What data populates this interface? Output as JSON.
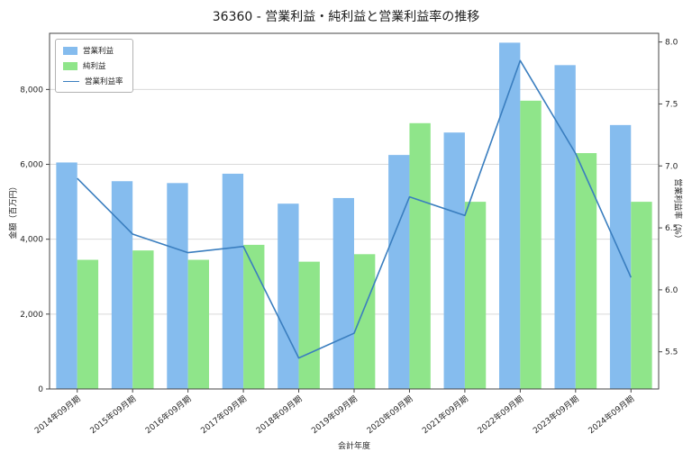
{
  "title": "36360 - 営業利益・純利益と営業利益率の推移",
  "chart_data": {
    "type": "bar",
    "categories": [
      "2014年09月期",
      "2015年09月期",
      "2016年09月期",
      "2017年09月期",
      "2018年09月期",
      "2019年09月期",
      "2020年09月期",
      "2021年09月期",
      "2022年09月期",
      "2023年09月期",
      "2024年09月期"
    ],
    "series": [
      {
        "name": "営業利益",
        "key": "operating-profit",
        "type": "bar",
        "axis": "left",
        "color": "#85bcee",
        "values": [
          6050,
          5550,
          5500,
          5750,
          4950,
          5100,
          6250,
          6850,
          9250,
          8650,
          7050
        ]
      },
      {
        "name": "純利益",
        "key": "net-profit",
        "type": "bar",
        "axis": "left",
        "color": "#8fe58a",
        "values": [
          3450,
          3700,
          3450,
          3850,
          3400,
          3600,
          7100,
          5000,
          7700,
          6300,
          5000
        ]
      },
      {
        "name": "営業利益率",
        "key": "operating-margin",
        "type": "line",
        "axis": "right",
        "color": "#3a7ebf",
        "values": [
          6.9,
          6.45,
          6.3,
          6.35,
          5.45,
          5.65,
          6.75,
          6.6,
          7.85,
          7.1,
          6.1
        ]
      }
    ],
    "xlabel": "会計年度",
    "ylabel_left": "金額（百万円）",
    "ylabel_right": "営業利益率（%）",
    "ylim_left": [
      0,
      9500
    ],
    "ylim_right": [
      5.2,
      8.07
    ],
    "yticks_left": [
      0,
      2000,
      4000,
      6000,
      8000
    ],
    "yticks_right": [
      5.5,
      6.0,
      6.5,
      7.0,
      7.5,
      8.0
    ],
    "grid": true,
    "legend_position": "upper left"
  }
}
